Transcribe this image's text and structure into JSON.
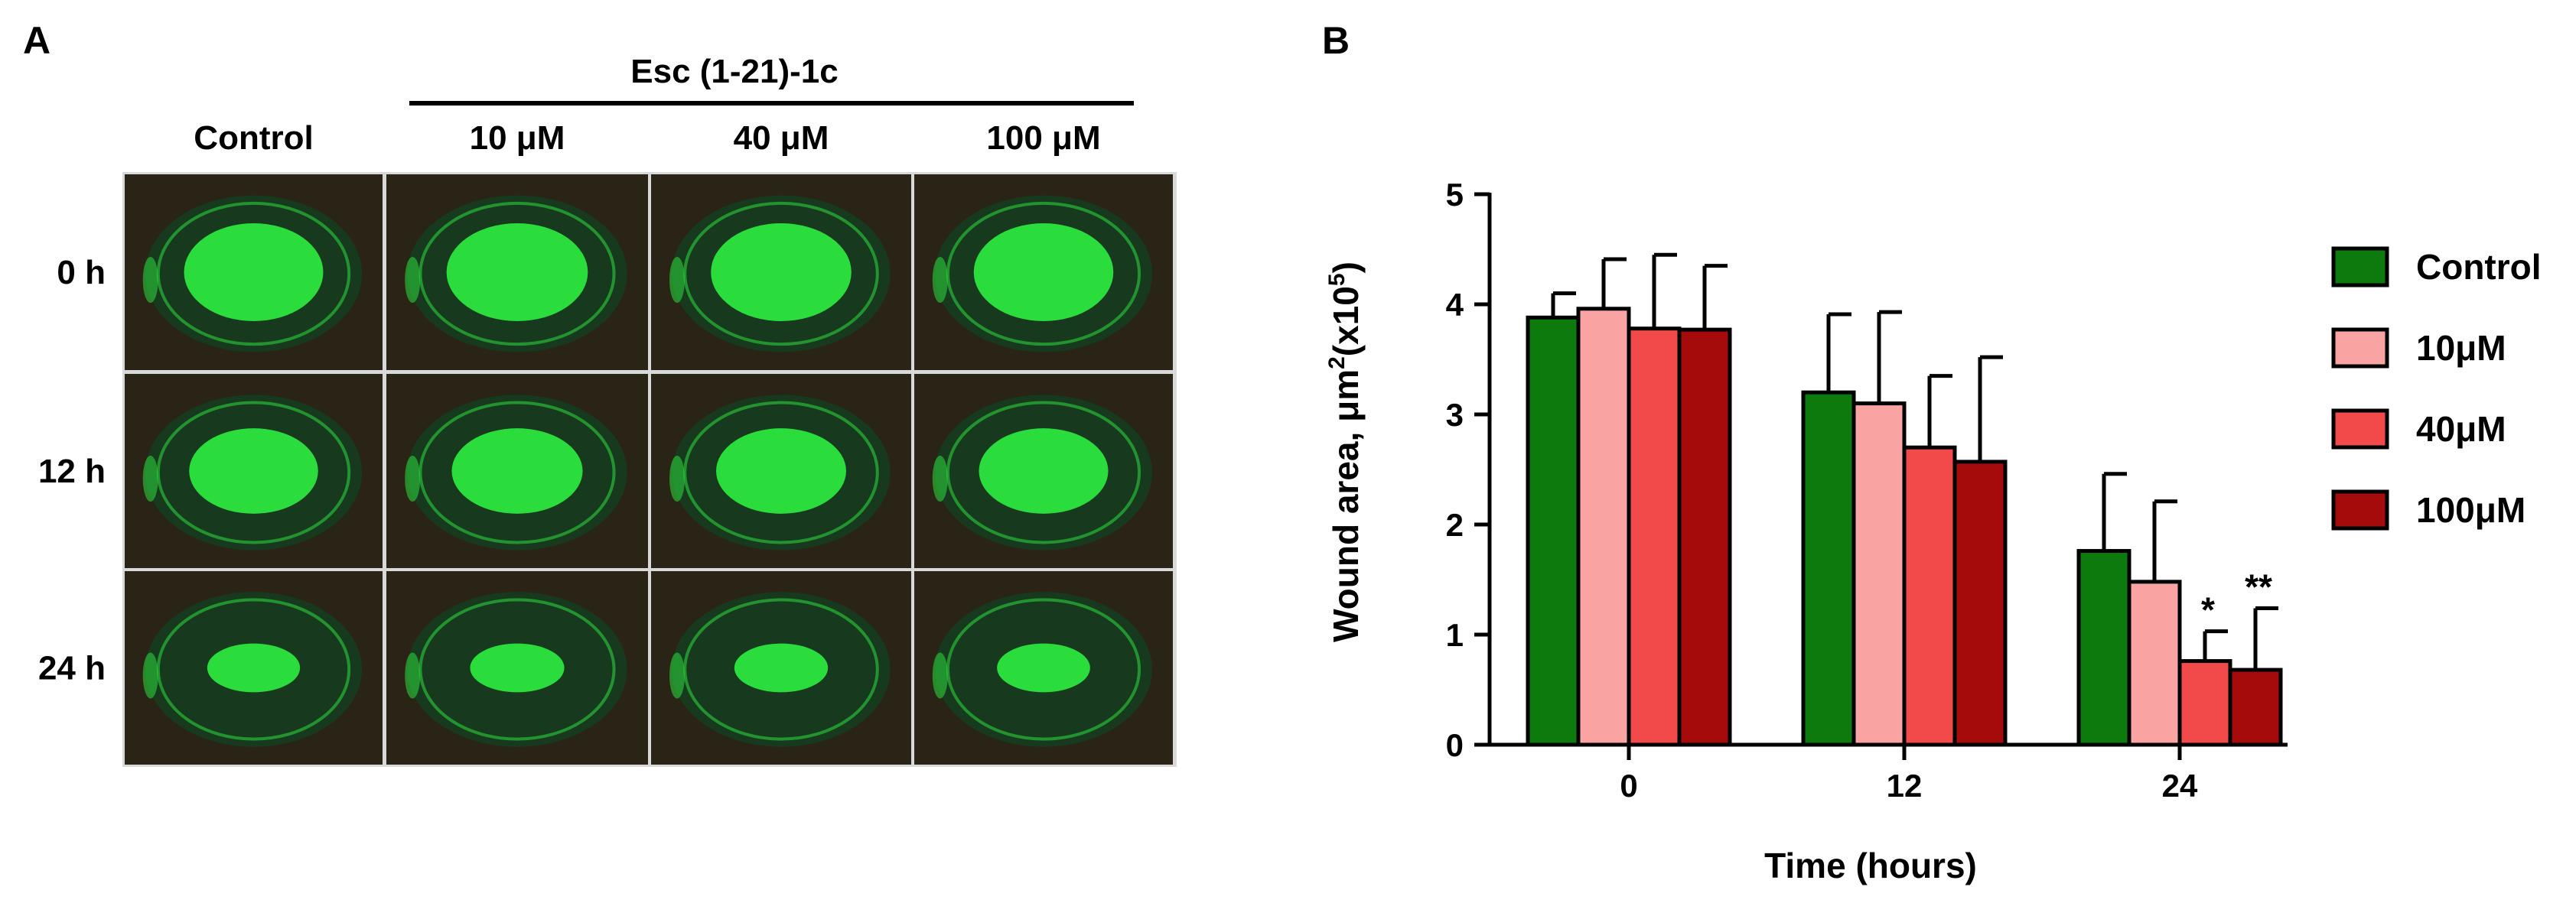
{
  "panel_a": {
    "label": "A",
    "treatment_group": "Esc (1-21)-1c",
    "columns": [
      "Control",
      "10 μM",
      "40 μM",
      "100 μM"
    ],
    "rows": [
      "0 h",
      "12 h",
      "24 h"
    ],
    "image_description_note": null,
    "colors": {
      "background": "#2a2417",
      "fluorescence": "#2bdc3d",
      "rim": "#0f5e1a",
      "frame": "#d9d9d9"
    }
  },
  "panel_b": {
    "label": "B"
  },
  "chart_data": {
    "type": "bar",
    "title": "",
    "xlabel": "Time (hours)",
    "ylabel": "Wound area, μm²(x10⁵)",
    "ylabel_parts": {
      "main": "Wound area, μm",
      "sup1": "2",
      "mid": "(x10",
      "sup2": "5",
      "end": ")"
    },
    "categories": [
      "0",
      "12",
      "24"
    ],
    "yticks": [
      "0",
      "1",
      "2",
      "3",
      "4",
      "5"
    ],
    "ylim": [
      0,
      5
    ],
    "grid": false,
    "legend_position": "right",
    "series": [
      {
        "name": "Control",
        "color": "#0d7a0d",
        "values": [
          3.88,
          3.2,
          1.76
        ],
        "errors": [
          0.22,
          0.71,
          0.7
        ]
      },
      {
        "name": "10μM",
        "color": "#f9a3a3",
        "values": [
          3.96,
          3.1,
          1.48
        ],
        "errors": [
          0.45,
          0.83,
          0.73
        ]
      },
      {
        "name": "40μM",
        "color": "#f24a4a",
        "values": [
          3.78,
          2.7,
          0.76
        ],
        "errors": [
          0.67,
          0.65,
          0.27
        ]
      },
      {
        "name": "100μM",
        "color": "#a50b0b",
        "values": [
          3.77,
          2.57,
          0.68
        ],
        "errors": [
          0.58,
          0.95,
          0.56
        ]
      }
    ],
    "annotations": [
      {
        "category": "24",
        "series": "40μM",
        "text": "*"
      },
      {
        "category": "24",
        "series": "100μM",
        "text": "**"
      }
    ]
  }
}
